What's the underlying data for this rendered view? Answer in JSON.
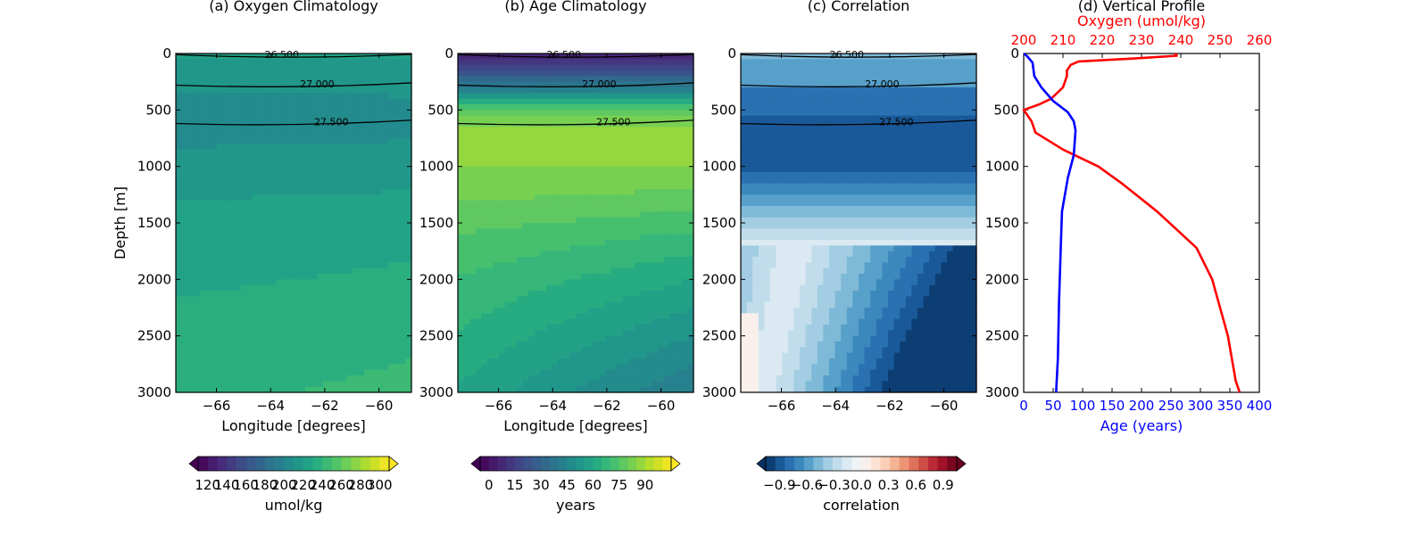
{
  "chart_data": [
    {
      "type": "heatmap",
      "title": "(a) Oxygen Climatology",
      "xlabel": "Longitude [degrees]",
      "ylabel": "Depth [m]",
      "xlim": [
        -67.5,
        -58.8
      ],
      "ylim": [
        3000,
        0
      ],
      "x_ticks": [
        "−66",
        "−64",
        "−62",
        "−60"
      ],
      "y_ticks": [
        "0",
        "500",
        "1000",
        "1500",
        "2000",
        "2500",
        "3000"
      ],
      "colormap": "viridis",
      "colorbar": {
        "label": "umol/kg",
        "ticks": [
          "120",
          "140",
          "160",
          "180",
          "200",
          "220",
          "240",
          "260",
          "280",
          "300"
        ],
        "range": [
          110,
          310
        ]
      },
      "density_contours": [
        "26.500",
        "27.000",
        "27.500"
      ],
      "depth_values": [
        [
          0,
          225
        ],
        [
          100,
          218
        ],
        [
          300,
          212
        ],
        [
          500,
          206
        ],
        [
          700,
          208
        ],
        [
          1000,
          214
        ],
        [
          1300,
          221
        ],
        [
          1600,
          226
        ],
        [
          2000,
          230
        ],
        [
          2500,
          236
        ],
        [
          3000,
          240
        ]
      ]
    },
    {
      "type": "heatmap",
      "title": "(b) Age Climatology",
      "xlabel": "Longitude [degrees]",
      "ylabel": "",
      "xlim": [
        -67.5,
        -58.8
      ],
      "ylim": [
        3000,
        0
      ],
      "x_ticks": [
        "−66",
        "−64",
        "−62",
        "−60"
      ],
      "y_ticks": [
        "0",
        "500",
        "1000",
        "1500",
        "2000",
        "2500",
        "3000"
      ],
      "colormap": "viridis",
      "colorbar": {
        "label": "years",
        "ticks": [
          "0",
          "15",
          "30",
          "45",
          "60",
          "75",
          "90"
        ],
        "range": [
          -5,
          105
        ]
      },
      "density_contours": [
        "26.500",
        "27.000",
        "27.500"
      ],
      "depth_values": [
        [
          0,
          5
        ],
        [
          100,
          15
        ],
        [
          300,
          40
        ],
        [
          500,
          75
        ],
        [
          700,
          90
        ],
        [
          1000,
          85
        ],
        [
          1300,
          80
        ],
        [
          1600,
          74
        ],
        [
          2000,
          68
        ],
        [
          2500,
          62
        ],
        [
          3000,
          56
        ]
      ]
    },
    {
      "type": "heatmap",
      "title": "(c) Correlation",
      "xlabel": "",
      "ylabel": "",
      "xlim": [
        -67.5,
        -58.8
      ],
      "ylim": [
        3000,
        0
      ],
      "x_ticks": [
        "−66",
        "−64",
        "−62",
        "−60"
      ],
      "y_ticks": [
        "0",
        "500",
        "1000",
        "1500",
        "2000",
        "2500",
        "3000"
      ],
      "colormap": "RdBu_r",
      "colorbar": {
        "label": "correlation",
        "ticks": [
          "−0.9",
          "−0.6",
          "−0.3",
          "0.0",
          "0.3",
          "0.6",
          "0.9"
        ],
        "range": [
          -1.05,
          1.05
        ]
      },
      "density_contours": [
        "26.500",
        "27.000",
        "27.500"
      ]
    },
    {
      "type": "line",
      "title": "(d) Vertical Profile",
      "ylabel": "",
      "ylim": [
        3000,
        0
      ],
      "y_ticks": [
        "0",
        "500",
        "1000",
        "1500",
        "2000",
        "2500",
        "3000"
      ],
      "top_axis": {
        "label": "Oxygen (umol/kg)",
        "color": "#ff0000",
        "lim": [
          200,
          260
        ],
        "ticks": [
          "200",
          "210",
          "220",
          "230",
          "240",
          "250",
          "260"
        ]
      },
      "bottom_axis": {
        "label": "Age (years)",
        "color": "#0000ff",
        "lim": [
          0,
          400
        ],
        "ticks": [
          "0",
          "50",
          "100",
          "150",
          "200",
          "250",
          "300",
          "350",
          "400"
        ]
      },
      "series": [
        {
          "axis": "top",
          "color": "#ff0000",
          "points": [
            [
              238.5,
              0
            ],
            [
              239,
              20
            ],
            [
              230,
              40
            ],
            [
              214,
              70
            ],
            [
              212,
              100
            ],
            [
              211,
              150
            ],
            [
              211,
              200
            ],
            [
              210,
              300
            ],
            [
              207,
              400
            ],
            [
              204,
              450
            ],
            [
              200,
              500
            ],
            [
              202,
              600
            ],
            [
              203,
              700
            ],
            [
              210,
              850
            ],
            [
              219,
              1000
            ],
            [
              225,
              1150
            ],
            [
              234,
              1400
            ],
            [
              244,
              1720
            ],
            [
              248,
              2000
            ],
            [
              252,
              2500
            ],
            [
              254,
              2900
            ],
            [
              255,
              3000
            ]
          ]
        },
        {
          "axis": "bottom",
          "color": "#0000ff",
          "points": [
            [
              0,
              0
            ],
            [
              5,
              20
            ],
            [
              15,
              80
            ],
            [
              18,
              200
            ],
            [
              30,
              300
            ],
            [
              50,
              420
            ],
            [
              75,
              520
            ],
            [
              85,
              600
            ],
            [
              88,
              680
            ],
            [
              85,
              900
            ],
            [
              75,
              1100
            ],
            [
              65,
              1400
            ],
            [
              63,
              1700
            ],
            [
              60,
              2200
            ],
            [
              58,
              2700
            ],
            [
              55,
              3000
            ]
          ]
        }
      ]
    }
  ]
}
